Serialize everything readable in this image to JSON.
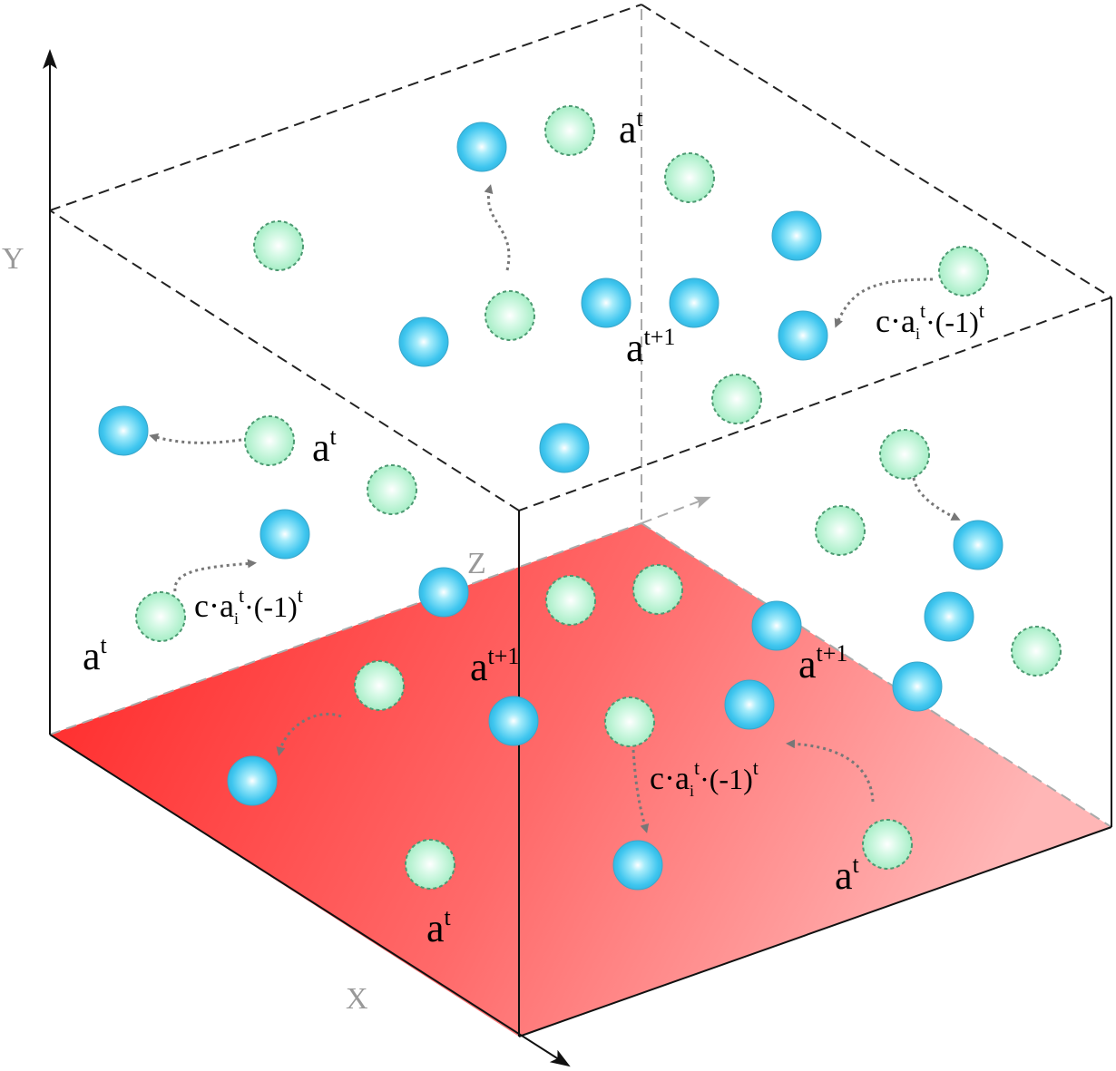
{
  "axes": {
    "x": "X",
    "y": "Y",
    "z": "Z"
  },
  "labels": {
    "a_t": "a",
    "a_t_sup": "t",
    "a_t1_sup": "t+1",
    "formula_c": "c·a",
    "formula_i": "i",
    "formula_t": "t",
    "formula_mid": "·(-1)",
    "formula_end": "t"
  },
  "legend_meaning": {
    "green_dashed_sphere": "a^t",
    "blue_sphere": "a^{t+1}"
  },
  "colors": {
    "floor_start": "#ff2a2a",
    "floor_end": "#ffb0b0",
    "green_sphere": "#bff5d6",
    "blue_sphere": "#3cc8ee",
    "edges": "#222222",
    "arrows": "#777777"
  }
}
